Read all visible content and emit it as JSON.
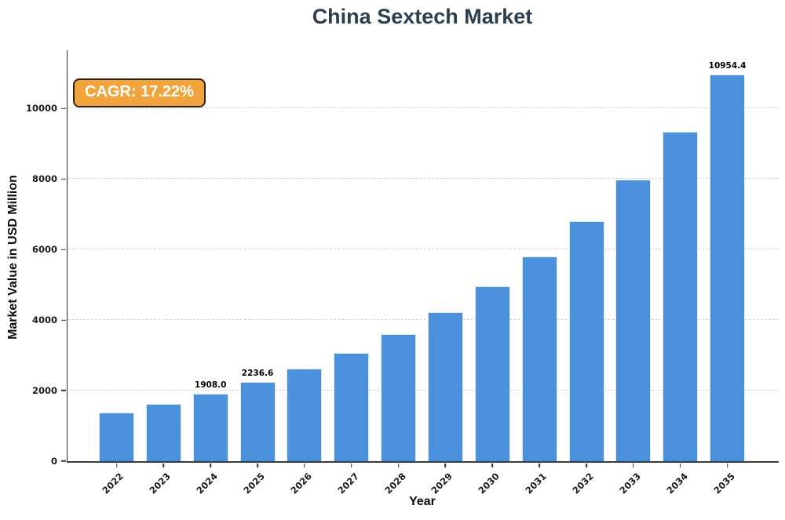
{
  "chart_data": {
    "type": "bar",
    "title": "China Sextech Market",
    "xlabel": "Year",
    "ylabel": "Market Value in USD Million",
    "categories": [
      "2022",
      "2023",
      "2024",
      "2025",
      "2026",
      "2027",
      "2028",
      "2029",
      "2030",
      "2031",
      "2032",
      "2033",
      "2034",
      "2035"
    ],
    "values": [
      1388.7,
      1627.9,
      1908.0,
      2236.6,
      2621.7,
      3073.2,
      3602.4,
      4222.7,
      4949.9,
      5802.3,
      6801.4,
      7972.6,
      9345.5,
      10954.4
    ],
    "bar_value_labels": [
      "",
      "",
      "1908.0",
      "2236.6",
      "",
      "",
      "",
      "",
      "",
      "",
      "",
      "",
      "",
      "10954.4"
    ],
    "yticks": [
      0,
      2000,
      4000,
      6000,
      8000,
      10000
    ],
    "ytick_labels": [
      "0",
      "2000",
      "4000",
      "6000",
      "8000",
      "10000"
    ],
    "ylim": [
      0,
      11650
    ],
    "grid": "horizontal-dashed",
    "legend_position": "none",
    "annotation": {
      "text": "CAGR: 17.22%",
      "bg_color": "#f2a43c",
      "text_color": "#ffffff",
      "border_color": "#2e2417"
    },
    "colors": {
      "bar": "#4a90db",
      "bar_edge": "#ffffff",
      "title": "#2d3e50",
      "axis": "#333333",
      "gridline": "#d2d2d2"
    }
  }
}
